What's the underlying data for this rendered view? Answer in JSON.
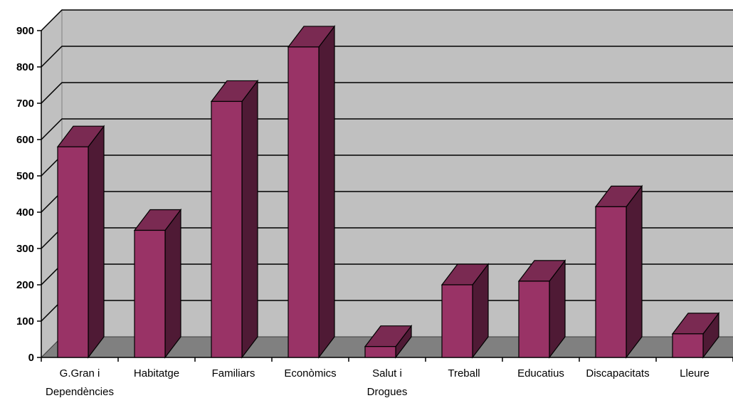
{
  "chart_data": {
    "type": "bar",
    "style": "3d-column",
    "categories": [
      [
        "G.Gran i",
        "Dependències"
      ],
      [
        "Habitatge"
      ],
      [
        "Familiars"
      ],
      [
        "Econòmics"
      ],
      [
        "Salut i",
        "Drogues"
      ],
      [
        "Treball"
      ],
      [
        "Educatius"
      ],
      [
        "Discapacitats"
      ],
      [
        "Lleure"
      ]
    ],
    "values": [
      580,
      350,
      705,
      855,
      30,
      200,
      210,
      415,
      65
    ],
    "ylim": [
      0,
      900
    ],
    "yticks": [
      "0",
      "100",
      "200",
      "300",
      "400",
      "500",
      "600",
      "700",
      "800",
      "900"
    ],
    "grid": true,
    "legend": "none",
    "title": "",
    "xlabel": "",
    "ylabel": ""
  },
  "colors": {
    "bar_front": "#993366",
    "bar_top": "#7a2a52",
    "bar_side": "#4f1a35",
    "wall": "#c0c0c0",
    "floor": "#808080",
    "grid": "#000000"
  }
}
